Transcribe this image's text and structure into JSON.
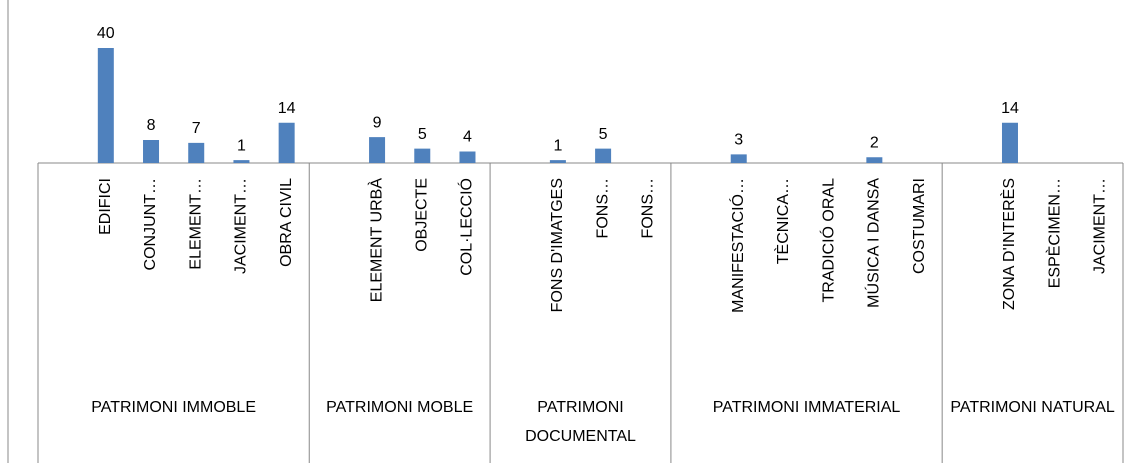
{
  "chart_data": {
    "type": "bar",
    "color": "#4f81bd",
    "ylim": [
      0,
      40
    ],
    "groups": [
      {
        "name": "PATRIMONI IMMOBLE",
        "categories": [
          null,
          "EDIFICI",
          "CONJUNT…",
          "ELEMENT…",
          "JACIMENT…",
          "OBRA CIVIL"
        ],
        "values": [
          null,
          40,
          8,
          7,
          1,
          14
        ]
      },
      {
        "name": "PATRIMONI MOBLE",
        "categories": [
          null,
          "ELEMENT URBÀ",
          "OBJECTE",
          "COL·LECCIÓ"
        ],
        "values": [
          null,
          9,
          5,
          4
        ]
      },
      {
        "name": "PATRIMONI DOCUMENTAL",
        "categories": [
          null,
          "FONS D'IMATGES",
          "FONS…",
          "FONS…"
        ],
        "values": [
          null,
          1,
          5,
          null
        ]
      },
      {
        "name": "PATRIMONI IMMATERIAL",
        "categories": [
          null,
          "MANIFESTACIÓ…",
          "TÈCNICA…",
          "TRADICIÓ ORAL",
          "MÚSICA I DANSA",
          "COSTUMARI"
        ],
        "values": [
          null,
          3,
          null,
          null,
          2,
          null
        ]
      },
      {
        "name": "PATRIMONI NATURAL",
        "categories": [
          null,
          "ZONA D'INTERÈS",
          "ESPÈCIMEN…",
          "JACIMENT…"
        ],
        "values": [
          null,
          14,
          null,
          null
        ]
      }
    ]
  }
}
